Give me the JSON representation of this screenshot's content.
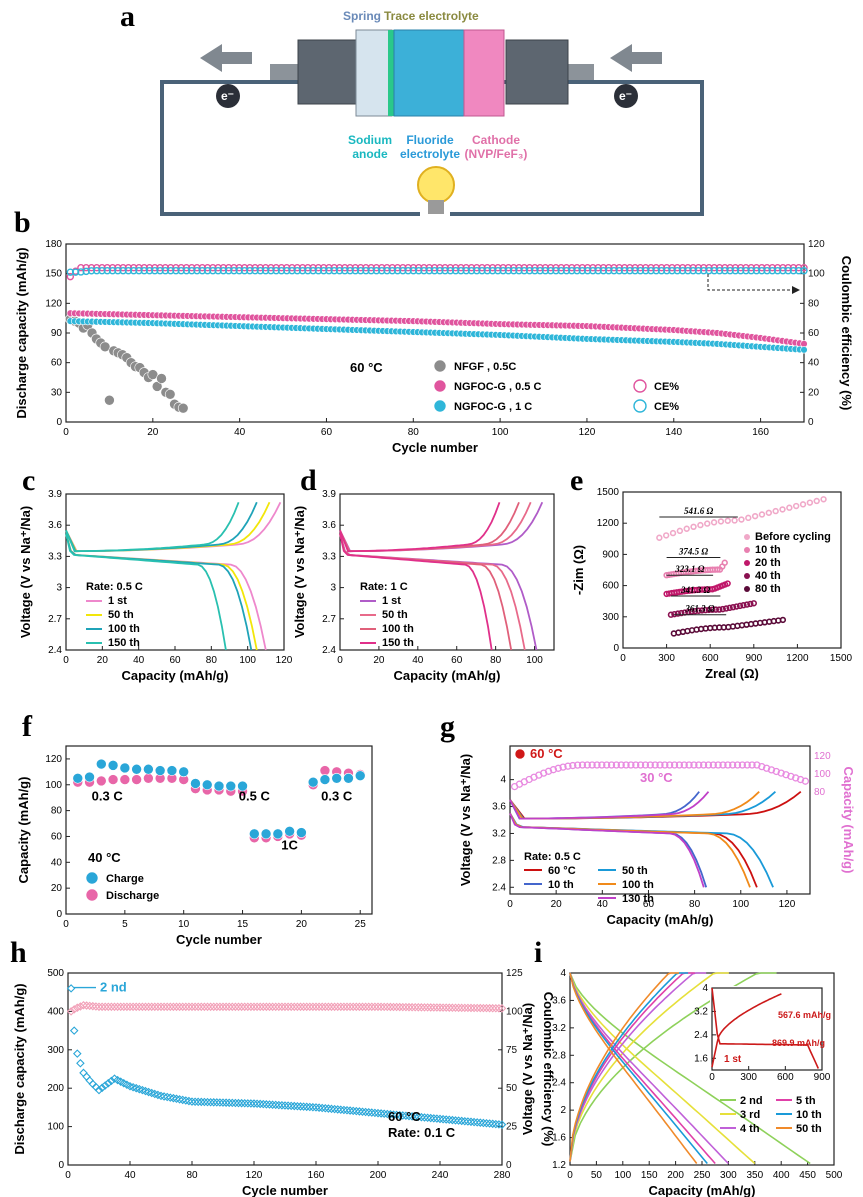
{
  "panel_labels": [
    "a",
    "b",
    "c",
    "d",
    "e",
    "f",
    "g",
    "h",
    "i"
  ],
  "schematic": {
    "top_labels": {
      "spring": "Spring",
      "trace": "Trace electrolyte"
    },
    "electron": "e⁻",
    "bottom_labels": {
      "anode": [
        "Sodium",
        "anode"
      ],
      "electrolyte": [
        "Fluoride",
        "electrolyte"
      ],
      "cathode": [
        "Cathode",
        "(NVP/FeF₃)"
      ]
    }
  },
  "chart_data": [
    {
      "id": "b",
      "type": "scatter",
      "xlabel": "Cycle number",
      "ylabel": "Discharge capacity (mAh/g)",
      "ylabel_right": "Coulombic efficiency (%)",
      "xlim": [
        0,
        170
      ],
      "ylim": [
        0,
        180
      ],
      "ylim_right": [
        0,
        120
      ],
      "xticks": [
        0,
        20,
        40,
        60,
        80,
        100,
        120,
        140,
        160
      ],
      "yticks": [
        0,
        30,
        60,
        90,
        120,
        150,
        180
      ],
      "yticks_right": [
        0,
        20,
        40,
        60,
        80,
        100,
        120
      ],
      "annotation": "60 °C",
      "legend": [
        "NFGF , 0.5C",
        "NGFOC-G , 0.5 C",
        "NGFOC-G , 1 C",
        "CE%",
        "CE%"
      ],
      "series": [
        {
          "name": "NFGF , 0.5C",
          "color": "#8c8c8c",
          "x": [
            1,
            2,
            3,
            4,
            5,
            6,
            7,
            8,
            9,
            10,
            11,
            12,
            13,
            14,
            15,
            16,
            17,
            18,
            19,
            20,
            21,
            22,
            23,
            24,
            25,
            26,
            27
          ],
          "y": [
            104,
            102,
            100,
            95,
            98,
            90,
            84,
            80,
            76,
            22,
            72,
            70,
            68,
            65,
            60,
            56,
            55,
            50,
            45,
            48,
            36,
            44,
            30,
            28,
            18,
            15,
            14
          ]
        },
        {
          "name": "NGFOC-G , 0.5 C",
          "color": "#e0559e",
          "x": [
            1,
            20,
            40,
            60,
            80,
            100,
            120,
            140,
            150,
            160,
            170
          ],
          "y": [
            110,
            108,
            106,
            104,
            102,
            99,
            97,
            93,
            90,
            85,
            79
          ]
        },
        {
          "name": "NGFOC-G , 1 C",
          "color": "#2fb6d9",
          "x": [
            1,
            20,
            40,
            60,
            80,
            100,
            120,
            140,
            150,
            160,
            170
          ],
          "y": [
            102,
            100,
            97,
            94,
            91,
            88,
            84,
            81,
            79,
            76,
            73
          ]
        },
        {
          "name": "CE% (0.5 C)",
          "color": "#e0559e",
          "axis": "right",
          "x": [
            1,
            3,
            6,
            20,
            60,
            100,
            140,
            170
          ],
          "y": [
            98,
            104,
            104,
            104,
            104,
            104,
            104,
            104
          ]
        },
        {
          "name": "CE% (1 C)",
          "color": "#2fb6d9",
          "axis": "right",
          "x": [
            1,
            3,
            6,
            20,
            60,
            100,
            140,
            170
          ],
          "y": [
            101,
            101,
            102,
            102,
            102,
            102,
            102,
            102
          ]
        }
      ]
    },
    {
      "id": "c",
      "type": "line",
      "xlabel": "Capacity (mAh/g)",
      "ylabel": "Voltage (V vs Na⁺/Na)",
      "xlim": [
        0,
        120
      ],
      "ylim": [
        2.4,
        3.9
      ],
      "xticks": [
        0,
        20,
        40,
        60,
        80,
        100,
        120
      ],
      "yticks": [
        2.4,
        2.7,
        3.0,
        3.3,
        3.6,
        3.9
      ],
      "annotation": "Rate: 0.5 C",
      "series": [
        {
          "name": "1 st",
          "color": "#ee88cc",
          "charge_end": 118,
          "discharge_end": 110
        },
        {
          "name": "50 th",
          "color": "#f2e60a",
          "charge_end": 112,
          "discharge_end": 105
        },
        {
          "name": "100 th",
          "color": "#1fa3b8",
          "charge_end": 105,
          "discharge_end": 102
        },
        {
          "name": "150 th",
          "color": "#29c0b0",
          "charge_end": 95,
          "discharge_end": 88
        }
      ]
    },
    {
      "id": "d",
      "type": "line",
      "xlabel": "Capacity (mAh/g)",
      "ylabel": "Voltage (V vs Na⁺/Na)",
      "xlim": [
        0,
        110
      ],
      "ylim": [
        2.4,
        3.9
      ],
      "xticks": [
        0,
        20,
        40,
        60,
        80,
        100
      ],
      "yticks": [
        2.4,
        2.7,
        3.0,
        3.3,
        3.6,
        3.9
      ],
      "annotation": "Rate: 1 C",
      "series": [
        {
          "name": "1 st",
          "color": "#b05cc8",
          "charge_end": 104,
          "discharge_end": 101
        },
        {
          "name": "50 th",
          "color": "#e86a8a",
          "charge_end": 98,
          "discharge_end": 95
        },
        {
          "name": "100 th",
          "color": "#e0607a",
          "charge_end": 92,
          "discharge_end": 88
        },
        {
          "name": "150 th",
          "color": "#e0308a",
          "charge_end": 82,
          "discharge_end": 78
        }
      ]
    },
    {
      "id": "e",
      "type": "scatter",
      "xlabel": "Zreal (Ω)",
      "ylabel": "-Zim (Ω)",
      "xlim": [
        0,
        1500
      ],
      "ylim": [
        0,
        1500
      ],
      "xticks": [
        0,
        300,
        600,
        900,
        1200,
        1500
      ],
      "yticks": [
        0,
        300,
        600,
        900,
        1200,
        1500
      ],
      "resistances": [
        "541.6 Ω",
        "374.5 Ω",
        "323.1 Ω",
        "341.3 Ω",
        "361.3 Ω"
      ],
      "series": [
        {
          "name": "Before cycling",
          "color": "#f0a8c8",
          "x0": 250,
          "x1": 1380,
          "y0": 1060,
          "y1": 1430,
          "r_end": 790
        },
        {
          "name": "10 th",
          "color": "#e880b0",
          "x0": 300,
          "x1": 700,
          "y0": 700,
          "y1": 820,
          "r_end": 670
        },
        {
          "name": "20 th",
          "color": "#c0186a",
          "x0": 300,
          "x1": 720,
          "y0": 520,
          "y1": 620,
          "r_end": 620
        },
        {
          "name": "40 th",
          "color": "#8a1050",
          "x0": 330,
          "x1": 900,
          "y0": 320,
          "y1": 430,
          "r_end": 670
        },
        {
          "name": "80 th",
          "color": "#5a0a38",
          "x0": 350,
          "x1": 1100,
          "y0": 140,
          "y1": 270,
          "r_end": 710
        }
      ]
    },
    {
      "id": "f",
      "type": "scatter",
      "xlabel": "Cycle number",
      "ylabel": "Capacity (mAh/g)",
      "xlim": [
        0,
        26
      ],
      "ylim": [
        0,
        130
      ],
      "xticks": [
        0,
        5,
        10,
        15,
        20,
        25
      ],
      "yticks": [
        0,
        20,
        40,
        60,
        80,
        100,
        120
      ],
      "annotation": "40 °C",
      "rate_labels": [
        "0.3 C",
        "0.5 C",
        "1C",
        "0.3 C"
      ],
      "series": [
        {
          "name": "Charge",
          "color": "#2aa6d8",
          "x": [
            1,
            2,
            3,
            4,
            5,
            6,
            7,
            8,
            9,
            10,
            11,
            12,
            13,
            14,
            15,
            16,
            17,
            18,
            19,
            20,
            21,
            22,
            23,
            24,
            25
          ],
          "y": [
            105,
            106,
            116,
            115,
            113,
            112,
            112,
            111,
            111,
            110,
            101,
            100,
            99,
            99,
            99,
            62,
            62,
            62,
            64,
            63,
            102,
            104,
            105,
            105,
            107
          ]
        },
        {
          "name": "Discharge",
          "color": "#e866a8",
          "x": [
            1,
            2,
            3,
            4,
            5,
            6,
            7,
            8,
            9,
            10,
            11,
            12,
            13,
            14,
            15,
            16,
            17,
            18,
            19,
            20,
            21,
            22,
            23,
            24,
            25
          ],
          "y": [
            102,
            102,
            103,
            104,
            104,
            104,
            105,
            105,
            105,
            104,
            97,
            96,
            96,
            95,
            95,
            59,
            59,
            60,
            62,
            61,
            100,
            111,
            110,
            109,
            108
          ]
        }
      ]
    },
    {
      "id": "g",
      "type": "line",
      "xlabel": "Capacity (mAh/g)",
      "ylabel": "Voltage (V vs Na⁺/Na)",
      "ylabel_right": "Capacity (mAh/g)",
      "xlim": [
        0,
        130
      ],
      "ylim": [
        2.3,
        4.5
      ],
      "xticks": [
        0,
        20,
        40,
        60,
        80,
        100,
        120
      ],
      "yticks": [
        2.4,
        2.8,
        3.2,
        3.6,
        4.0
      ],
      "yticks_right": [
        80,
        100,
        120
      ],
      "annotations": [
        "60 °C",
        "30 °C",
        "Rate: 0.5 C"
      ],
      "series": [
        {
          "name": "60 °C",
          "color": "#cc1010",
          "charge_end": 126,
          "discharge_end": 107
        },
        {
          "name": "10 th",
          "color": "#4466cc",
          "charge_end": 82,
          "discharge_end": 85
        },
        {
          "name": "50 th",
          "color": "#1a9ad8",
          "charge_end": 115,
          "discharge_end": 114
        },
        {
          "name": "100 th",
          "color": "#f08a1a",
          "charge_end": 108,
          "discharge_end": 104
        },
        {
          "name": "130 th",
          "color": "#c040c8",
          "charge_end": 86,
          "discharge_end": 84
        }
      ]
    },
    {
      "id": "h",
      "type": "scatter",
      "xlabel": "Cycle number",
      "ylabel": "Discharge capacity (mAh/g)",
      "ylabel_right": "Coulombic efficiency (%)",
      "xlim": [
        0,
        280
      ],
      "ylim": [
        0,
        500
      ],
      "ylim_right": [
        0,
        125
      ],
      "xticks": [
        0,
        40,
        80,
        120,
        160,
        200,
        240,
        280
      ],
      "yticks": [
        0,
        100,
        200,
        300,
        400,
        500
      ],
      "yticks_right": [
        0,
        25,
        50,
        75,
        100,
        125
      ],
      "annotations": [
        "2 nd",
        "60 °C",
        "Rate: 0.1 C"
      ],
      "series": [
        {
          "name": "Discharge capacity",
          "color": "#2aa6d8",
          "x": [
            2,
            4,
            6,
            10,
            15,
            20,
            30,
            40,
            60,
            80,
            120,
            160,
            200,
            240,
            280
          ],
          "y": [
            460,
            350,
            290,
            240,
            215,
            195,
            225,
            205,
            180,
            165,
            160,
            150,
            135,
            120,
            105
          ]
        },
        {
          "name": "Coulombic efficiency",
          "color": "#f2a0b8",
          "axis": "right",
          "x": [
            2,
            5,
            10,
            20,
            60,
            120,
            200,
            280
          ],
          "y": [
            100,
            102,
            104,
            103,
            103,
            103,
            103,
            102
          ]
        }
      ]
    },
    {
      "id": "i",
      "type": "line",
      "xlabel": "Capacity (mAh/g)",
      "ylabel": "Voltage (V vs Na⁺/Na)",
      "xlim": [
        0,
        500
      ],
      "ylim": [
        1.2,
        4.0
      ],
      "xticks": [
        0,
        50,
        100,
        150,
        200,
        250,
        300,
        350,
        400,
        450,
        500
      ],
      "yticks": [
        1.2,
        1.6,
        2.0,
        2.4,
        2.8,
        3.2,
        3.6,
        4.0
      ],
      "series": [
        {
          "name": "2 nd",
          "color": "#8ed15a",
          "discharge_end": 455
        },
        {
          "name": "3 rd",
          "color": "#e6e03a",
          "discharge_end": 350
        },
        {
          "name": "4 th",
          "color": "#c060d8",
          "discharge_end": 300
        },
        {
          "name": "5 th",
          "color": "#e040a8",
          "discharge_end": 275
        },
        {
          "name": "10 th",
          "color": "#1a9ad8",
          "discharge_end": 260
        },
        {
          "name": "50 th",
          "color": "#f08a2a",
          "discharge_end": 240
        }
      ],
      "inset": {
        "xlim": [
          0,
          900
        ],
        "ylim": [
          1.2,
          4.0
        ],
        "xticks": [
          0,
          300,
          600,
          900
        ],
        "yticks": [
          1.6,
          2.4,
          3.2,
          4.0
        ],
        "color": "#cc1a1a",
        "labels": [
          "567.6 mAh/g",
          "869.9 mAh/g",
          "1 st"
        ]
      }
    }
  ]
}
